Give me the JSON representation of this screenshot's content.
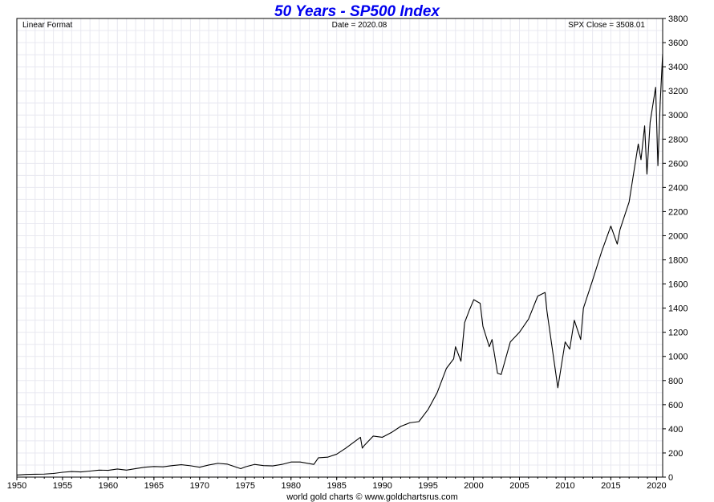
{
  "chart_data": {
    "type": "line",
    "title": "50 Years - SP500 Index",
    "info_left": "Linear Format",
    "info_center": "Date = 2020.08",
    "info_right": "SPX Close = 3508.01",
    "credit": "world gold charts © www.goldchartsrus.com",
    "xlim": [
      1950,
      2020.67
    ],
    "ylim": [
      0,
      3800
    ],
    "x_ticks": [
      1950,
      1955,
      1960,
      1965,
      1970,
      1975,
      1980,
      1985,
      1990,
      1995,
      2000,
      2005,
      2010,
      2015,
      2020
    ],
    "x_tick_labels": [
      "1950",
      "1955",
      "1960",
      "1965",
      "1970",
      "1975",
      "1980",
      "1985",
      "1990",
      "1995",
      "2000",
      "2005",
      "2010",
      "2015",
      "2020"
    ],
    "y_ticks": [
      0,
      200,
      400,
      600,
      800,
      1000,
      1200,
      1400,
      1600,
      1800,
      2000,
      2200,
      2400,
      2600,
      2800,
      3000,
      3200,
      3400,
      3600,
      3800
    ],
    "y_tick_labels": [
      "0",
      "200",
      "400",
      "600",
      "800",
      "1000",
      "1200",
      "1400",
      "1600",
      "1800",
      "2000",
      "2200",
      "2400",
      "2600",
      "2800",
      "3000",
      "3200",
      "3400",
      "3600",
      "3800"
    ],
    "grid": true,
    "series": [
      {
        "line_color": "#000000",
        "points": [
          [
            1950.0,
            17
          ],
          [
            1951.0,
            22
          ],
          [
            1952.0,
            24
          ],
          [
            1953.0,
            25
          ],
          [
            1954.0,
            30
          ],
          [
            1955.0,
            40
          ],
          [
            1956.0,
            46
          ],
          [
            1957.0,
            43
          ],
          [
            1958.0,
            50
          ],
          [
            1959.0,
            58
          ],
          [
            1960.0,
            56
          ],
          [
            1961.0,
            67
          ],
          [
            1962.0,
            58
          ],
          [
            1963.0,
            70
          ],
          [
            1964.0,
            82
          ],
          [
            1965.0,
            88
          ],
          [
            1966.0,
            85
          ],
          [
            1967.0,
            95
          ],
          [
            1968.0,
            103
          ],
          [
            1969.0,
            94
          ],
          [
            1970.0,
            82
          ],
          [
            1971.0,
            100
          ],
          [
            1972.0,
            114
          ],
          [
            1973.0,
            108
          ],
          [
            1974.5,
            70
          ],
          [
            1975.0,
            85
          ],
          [
            1976.0,
            105
          ],
          [
            1977.0,
            95
          ],
          [
            1978.0,
            93
          ],
          [
            1979.0,
            105
          ],
          [
            1980.0,
            125
          ],
          [
            1981.0,
            125
          ],
          [
            1982.5,
            105
          ],
          [
            1983.0,
            160
          ],
          [
            1984.0,
            165
          ],
          [
            1985.0,
            190
          ],
          [
            1986.0,
            240
          ],
          [
            1987.6,
            330
          ],
          [
            1987.8,
            240
          ],
          [
            1988.0,
            260
          ],
          [
            1989.0,
            340
          ],
          [
            1990.0,
            330
          ],
          [
            1991.0,
            370
          ],
          [
            1992.0,
            420
          ],
          [
            1993.0,
            450
          ],
          [
            1994.0,
            460
          ],
          [
            1995.0,
            560
          ],
          [
            1996.0,
            700
          ],
          [
            1997.0,
            900
          ],
          [
            1997.8,
            980
          ],
          [
            1998.0,
            1080
          ],
          [
            1998.6,
            960
          ],
          [
            1999.0,
            1280
          ],
          [
            1999.5,
            1380
          ],
          [
            2000.0,
            1470
          ],
          [
            2000.7,
            1440
          ],
          [
            2001.0,
            1250
          ],
          [
            2001.7,
            1080
          ],
          [
            2002.0,
            1140
          ],
          [
            2002.6,
            860
          ],
          [
            2003.0,
            850
          ],
          [
            2004.0,
            1120
          ],
          [
            2005.0,
            1200
          ],
          [
            2006.0,
            1310
          ],
          [
            2007.0,
            1500
          ],
          [
            2007.8,
            1530
          ],
          [
            2008.0,
            1380
          ],
          [
            2008.9,
            900
          ],
          [
            2009.2,
            740
          ],
          [
            2010.0,
            1120
          ],
          [
            2010.5,
            1060
          ],
          [
            2011.0,
            1300
          ],
          [
            2011.7,
            1140
          ],
          [
            2012.0,
            1400
          ],
          [
            2013.0,
            1630
          ],
          [
            2014.0,
            1870
          ],
          [
            2015.0,
            2080
          ],
          [
            2015.7,
            1930
          ],
          [
            2016.0,
            2050
          ],
          [
            2017.0,
            2280
          ],
          [
            2018.0,
            2760
          ],
          [
            2018.3,
            2630
          ],
          [
            2018.7,
            2910
          ],
          [
            2018.95,
            2510
          ],
          [
            2019.3,
            2940
          ],
          [
            2019.9,
            3230
          ],
          [
            2020.15,
            2580
          ],
          [
            2020.4,
            3100
          ],
          [
            2020.67,
            3508
          ]
        ]
      }
    ]
  }
}
